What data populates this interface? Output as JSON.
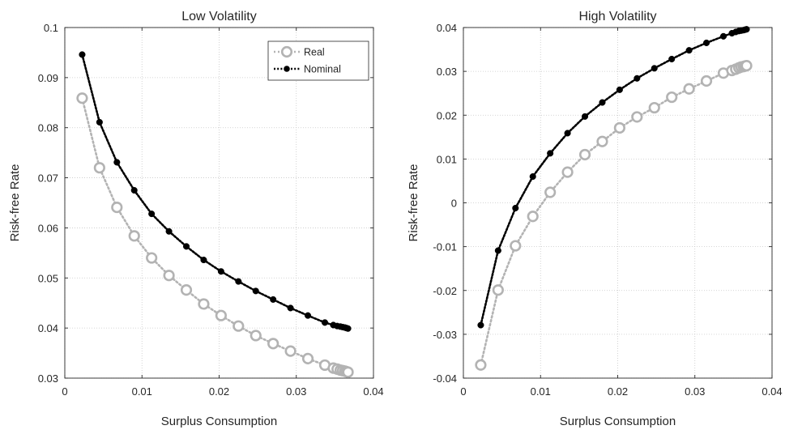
{
  "chart_data": [
    {
      "type": "line",
      "title": "Low Volatility",
      "xlabel": "Surplus Consumption",
      "ylabel": "Risk-free Rate",
      "xlim": [
        0,
        0.04
      ],
      "ylim": [
        0.03,
        0.1
      ],
      "xticks": [
        0,
        0.01,
        0.02,
        0.03,
        0.04
      ],
      "xtick_labels": [
        "0",
        "0.01",
        "0.02",
        "0.03",
        "0.04"
      ],
      "yticks": [
        0.03,
        0.04,
        0.05,
        0.06,
        0.07,
        0.08,
        0.09,
        0.1
      ],
      "ytick_labels": [
        "0.03",
        "0.04",
        "0.05",
        "0.06",
        "0.07",
        "0.08",
        "0.09",
        "0.1"
      ],
      "grid": true,
      "legend": "top-right",
      "series": [
        {
          "name": "Real",
          "color": "#b3b3b3",
          "marker": "circle-open",
          "x": [
            0.00225,
            0.0045,
            0.00675,
            0.009,
            0.01125,
            0.0135,
            0.01575,
            0.018,
            0.02025,
            0.0225,
            0.02475,
            0.027,
            0.02925,
            0.0315,
            0.0337,
            0.0348,
            0.0353,
            0.0357,
            0.036,
            0.0363,
            0.0365,
            0.0367
          ],
          "y": [
            0.0859,
            0.072,
            0.0641,
            0.0584,
            0.054,
            0.0505,
            0.0476,
            0.0448,
            0.0425,
            0.0404,
            0.0385,
            0.0369,
            0.0354,
            0.0339,
            0.0326,
            0.032,
            0.0318,
            0.0316,
            0.0315,
            0.0314,
            0.0313,
            0.0312
          ]
        },
        {
          "name": "Nominal",
          "color": "#000000",
          "marker": "circle-filled",
          "x": [
            0.00225,
            0.0045,
            0.00675,
            0.009,
            0.01125,
            0.0135,
            0.01575,
            0.018,
            0.02025,
            0.0225,
            0.02475,
            0.027,
            0.02925,
            0.0315,
            0.0337,
            0.0348,
            0.0353,
            0.0357,
            0.036,
            0.0363,
            0.0365,
            0.0367
          ],
          "y": [
            0.0946,
            0.0811,
            0.0731,
            0.0675,
            0.0628,
            0.0593,
            0.0563,
            0.0536,
            0.0513,
            0.0493,
            0.0474,
            0.0457,
            0.044,
            0.0425,
            0.0411,
            0.0406,
            0.0404,
            0.0403,
            0.0402,
            0.0401,
            0.04,
            0.0399
          ]
        }
      ]
    },
    {
      "type": "line",
      "title": "High Volatility",
      "xlabel": "Surplus Consumption",
      "ylabel": "Risk-free Rate",
      "xlim": [
        0,
        0.04
      ],
      "ylim": [
        -0.04,
        0.04
      ],
      "xticks": [
        0,
        0.01,
        0.02,
        0.03,
        0.04
      ],
      "xtick_labels": [
        "0",
        "0.01",
        "0.02",
        "0.03",
        "0.04"
      ],
      "yticks": [
        -0.04,
        -0.03,
        -0.02,
        -0.01,
        0,
        0.01,
        0.02,
        0.03,
        0.04
      ],
      "ytick_labels": [
        "-0.04",
        "-0.03",
        "-0.02",
        "-0.01",
        "0",
        "0.01",
        "0.02",
        "0.03",
        "0.04"
      ],
      "grid": true,
      "series": [
        {
          "name": "Real",
          "color": "#b3b3b3",
          "marker": "circle-open",
          "x": [
            0.00225,
            0.0045,
            0.00675,
            0.009,
            0.01125,
            0.0135,
            0.01575,
            0.018,
            0.02025,
            0.0225,
            0.02475,
            0.027,
            0.02925,
            0.0315,
            0.0337,
            0.0348,
            0.0353,
            0.0357,
            0.036,
            0.0363,
            0.0365,
            0.0367
          ],
          "y": [
            -0.037,
            -0.0199,
            -0.0098,
            -0.0031,
            0.0024,
            0.007,
            0.011,
            0.014,
            0.0171,
            0.0196,
            0.0217,
            0.0241,
            0.026,
            0.0278,
            0.0296,
            0.0302,
            0.0305,
            0.0308,
            0.031,
            0.0311,
            0.0312,
            0.0313
          ]
        },
        {
          "name": "Nominal",
          "color": "#000000",
          "marker": "circle-filled",
          "x": [
            0.00225,
            0.0045,
            0.00675,
            0.009,
            0.01125,
            0.0135,
            0.01575,
            0.018,
            0.02025,
            0.0225,
            0.02475,
            0.027,
            0.02925,
            0.0315,
            0.0337,
            0.0348,
            0.0353,
            0.0357,
            0.036,
            0.0363,
            0.0365,
            0.0367
          ],
          "y": [
            -0.0279,
            -0.0109,
            -0.0012,
            0.006,
            0.0113,
            0.0159,
            0.0197,
            0.0229,
            0.0258,
            0.0284,
            0.0307,
            0.0328,
            0.0348,
            0.0365,
            0.038,
            0.0387,
            0.039,
            0.0392,
            0.0393,
            0.0394,
            0.0395,
            0.0396
          ]
        }
      ]
    }
  ]
}
